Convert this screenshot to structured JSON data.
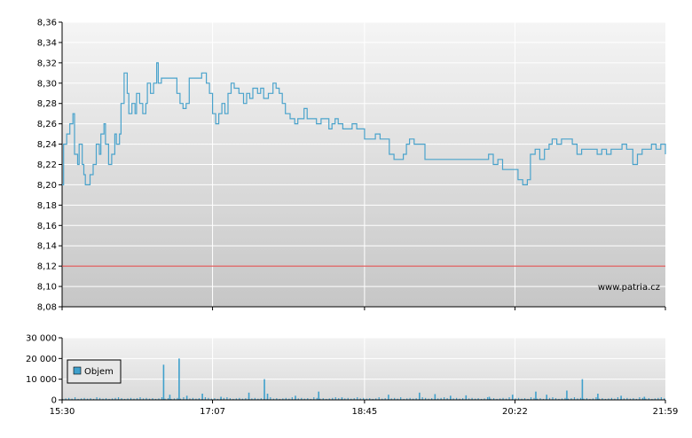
{
  "chart_data": [
    {
      "type": "line",
      "title": "",
      "xlabel": "",
      "ylabel": "",
      "ylim": [
        8.08,
        8.36
      ],
      "y_ticks": [
        "8,08",
        "8,10",
        "8,12",
        "8,14",
        "8,16",
        "8,18",
        "8,20",
        "8,22",
        "8,24",
        "8,26",
        "8,28",
        "8,30",
        "8,32",
        "8,34",
        "8,36"
      ],
      "x_ticks": [
        "15:30",
        "17:07",
        "18:45",
        "20:22",
        "21:59"
      ],
      "grid": true,
      "reference_line": {
        "value": 8.12,
        "color": "#e03c3c"
      },
      "watermark": "www.patria.cz",
      "line_color": "#4aa3cc",
      "series": [
        {
          "points": [
            [
              "15:30",
              8.2
            ],
            [
              "15:31",
              8.24
            ],
            [
              "15:33",
              8.25
            ],
            [
              "15:35",
              8.26
            ],
            [
              "15:37",
              8.27
            ],
            [
              "15:38",
              8.23
            ],
            [
              "15:40",
              8.22
            ],
            [
              "15:41",
              8.24
            ],
            [
              "15:43",
              8.22
            ],
            [
              "15:44",
              8.21
            ],
            [
              "15:45",
              8.2
            ],
            [
              "15:48",
              8.21
            ],
            [
              "15:50",
              8.22
            ],
            [
              "15:52",
              8.24
            ],
            [
              "15:54",
              8.23
            ],
            [
              "15:55",
              8.25
            ],
            [
              "15:57",
              8.26
            ],
            [
              "15:58",
              8.24
            ],
            [
              "16:00",
              8.22
            ],
            [
              "16:02",
              8.23
            ],
            [
              "16:04",
              8.25
            ],
            [
              "16:05",
              8.24
            ],
            [
              "16:07",
              8.25
            ],
            [
              "16:08",
              8.28
            ],
            [
              "16:10",
              8.31
            ],
            [
              "16:12",
              8.29
            ],
            [
              "16:13",
              8.27
            ],
            [
              "16:15",
              8.28
            ],
            [
              "16:17",
              8.27
            ],
            [
              "16:18",
              8.29
            ],
            [
              "16:20",
              8.28
            ],
            [
              "16:22",
              8.27
            ],
            [
              "16:24",
              8.28
            ],
            [
              "16:25",
              8.3
            ],
            [
              "16:27",
              8.29
            ],
            [
              "16:29",
              8.3
            ],
            [
              "16:31",
              8.32
            ],
            [
              "16:32",
              8.3
            ],
            [
              "16:34",
              8.305
            ],
            [
              "16:38",
              8.305
            ],
            [
              "16:42",
              8.305
            ],
            [
              "16:44",
              8.29
            ],
            [
              "16:46",
              8.28
            ],
            [
              "16:48",
              8.275
            ],
            [
              "16:50",
              8.28
            ],
            [
              "16:52",
              8.305
            ],
            [
              "16:55",
              8.305
            ],
            [
              "16:58",
              8.305
            ],
            [
              "17:00",
              8.31
            ],
            [
              "17:03",
              8.3
            ],
            [
              "17:05",
              8.29
            ],
            [
              "17:07",
              8.27
            ],
            [
              "17:09",
              8.26
            ],
            [
              "17:11",
              8.27
            ],
            [
              "17:13",
              8.28
            ],
            [
              "17:15",
              8.27
            ],
            [
              "17:17",
              8.29
            ],
            [
              "17:19",
              8.3
            ],
            [
              "17:21",
              8.295
            ],
            [
              "17:24",
              8.29
            ],
            [
              "17:27",
              8.28
            ],
            [
              "17:29",
              8.29
            ],
            [
              "17:31",
              8.285
            ],
            [
              "17:33",
              8.295
            ],
            [
              "17:36",
              8.29
            ],
            [
              "17:38",
              8.295
            ],
            [
              "17:40",
              8.285
            ],
            [
              "17:43",
              8.29
            ],
            [
              "17:46",
              8.3
            ],
            [
              "17:48",
              8.295
            ],
            [
              "17:50",
              8.29
            ],
            [
              "17:52",
              8.28
            ],
            [
              "17:54",
              8.27
            ],
            [
              "17:57",
              8.265
            ],
            [
              "18:00",
              8.26
            ],
            [
              "18:02",
              8.265
            ],
            [
              "18:04",
              8.265
            ],
            [
              "18:06",
              8.275
            ],
            [
              "18:08",
              8.265
            ],
            [
              "18:11",
              8.265
            ],
            [
              "18:14",
              8.26
            ],
            [
              "18:17",
              8.265
            ],
            [
              "18:20",
              8.265
            ],
            [
              "18:22",
              8.255
            ],
            [
              "18:24",
              8.26
            ],
            [
              "18:26",
              8.265
            ],
            [
              "18:28",
              8.26
            ],
            [
              "18:31",
              8.255
            ],
            [
              "18:34",
              8.255
            ],
            [
              "18:37",
              8.26
            ],
            [
              "18:40",
              8.255
            ],
            [
              "18:45",
              8.245
            ],
            [
              "18:48",
              8.245
            ],
            [
              "18:52",
              8.25
            ],
            [
              "18:55",
              8.245
            ],
            [
              "18:58",
              8.245
            ],
            [
              "19:01",
              8.23
            ],
            [
              "19:04",
              8.225
            ],
            [
              "19:07",
              8.225
            ],
            [
              "19:10",
              8.23
            ],
            [
              "19:12",
              8.24
            ],
            [
              "19:14",
              8.245
            ],
            [
              "19:17",
              8.24
            ],
            [
              "19:21",
              8.24
            ],
            [
              "19:24",
              8.225
            ],
            [
              "19:30",
              8.225
            ],
            [
              "19:36",
              8.225
            ],
            [
              "19:42",
              8.225
            ],
            [
              "19:48",
              8.225
            ],
            [
              "19:54",
              8.225
            ],
            [
              "20:00",
              8.225
            ],
            [
              "20:05",
              8.23
            ],
            [
              "20:08",
              8.22
            ],
            [
              "20:11",
              8.225
            ],
            [
              "20:14",
              8.215
            ],
            [
              "20:17",
              8.215
            ],
            [
              "20:20",
              8.215
            ],
            [
              "20:22",
              8.215
            ],
            [
              "20:24",
              8.205
            ],
            [
              "20:27",
              8.2
            ],
            [
              "20:30",
              8.205
            ],
            [
              "20:32",
              8.23
            ],
            [
              "20:35",
              8.235
            ],
            [
              "20:38",
              8.225
            ],
            [
              "20:41",
              8.235
            ],
            [
              "20:44",
              8.24
            ],
            [
              "20:46",
              8.245
            ],
            [
              "20:49",
              8.24
            ],
            [
              "20:52",
              8.245
            ],
            [
              "20:56",
              8.245
            ],
            [
              "20:59",
              8.24
            ],
            [
              "21:02",
              8.23
            ],
            [
              "21:05",
              8.235
            ],
            [
              "21:09",
              8.235
            ],
            [
              "21:12",
              8.235
            ],
            [
              "21:15",
              8.23
            ],
            [
              "21:18",
              8.235
            ],
            [
              "21:21",
              8.23
            ],
            [
              "21:24",
              8.235
            ],
            [
              "21:28",
              8.235
            ],
            [
              "21:31",
              8.24
            ],
            [
              "21:34",
              8.235
            ],
            [
              "21:38",
              8.22
            ],
            [
              "21:41",
              8.23
            ],
            [
              "21:44",
              8.235
            ],
            [
              "21:47",
              8.235
            ],
            [
              "21:50",
              8.24
            ],
            [
              "21:53",
              8.235
            ],
            [
              "21:56",
              8.24
            ],
            [
              "21:59",
              8.23
            ]
          ]
        }
      ]
    },
    {
      "type": "bar",
      "title": "",
      "xlabel": "",
      "ylabel": "",
      "ylim": [
        0,
        30000
      ],
      "y_ticks": [
        "0",
        "10 000",
        "20 000",
        "30 000"
      ],
      "x_ticks": [
        "15:30",
        "17:07",
        "18:45",
        "20:22",
        "21:59"
      ],
      "grid": true,
      "legend": {
        "placement": "top-left",
        "label": "Objem",
        "color": "#3fa0cc"
      },
      "bar_color": "#3fa0cc",
      "baseline_volume": 800,
      "series": [
        {
          "name": "Objem",
          "points": [
            [
              "16:35",
              17000
            ],
            [
              "16:39",
              2500
            ],
            [
              "16:45",
              20000
            ],
            [
              "16:50",
              2000
            ],
            [
              "17:00",
              3000
            ],
            [
              "17:12",
              1500
            ],
            [
              "17:30",
              3500
            ],
            [
              "17:40",
              10000
            ],
            [
              "17:42",
              3000
            ],
            [
              "18:00",
              2000
            ],
            [
              "18:15",
              4000
            ],
            [
              "18:30",
              1200
            ],
            [
              "19:00",
              2500
            ],
            [
              "19:20",
              3500
            ],
            [
              "19:30",
              2800
            ],
            [
              "19:40",
              2000
            ],
            [
              "19:50",
              2200
            ],
            [
              "20:05",
              1500
            ],
            [
              "20:20",
              2500
            ],
            [
              "20:35",
              4000
            ],
            [
              "20:42",
              2500
            ],
            [
              "20:55",
              4500
            ],
            [
              "21:05",
              10000
            ],
            [
              "21:15",
              3000
            ],
            [
              "21:30",
              2000
            ],
            [
              "21:45",
              1500
            ]
          ]
        }
      ]
    }
  ]
}
